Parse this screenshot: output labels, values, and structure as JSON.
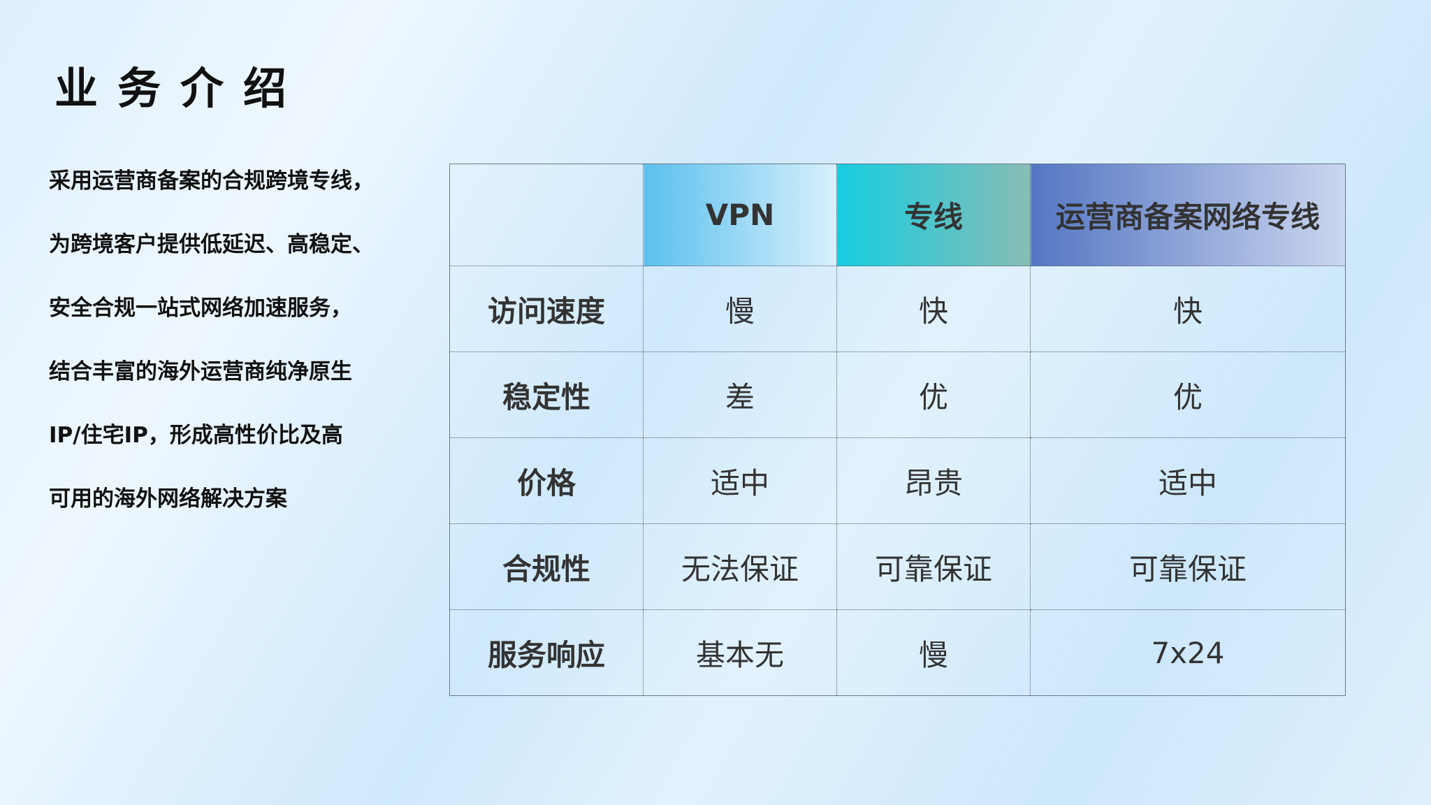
{
  "title": "业务介绍",
  "paragraph": [
    "采用运营商备案的合规跨境专线，",
    "为跨境客户提供低延迟、高稳定、",
    "安全合规一站式网络加速服务，",
    "结合丰富的海外运营商纯净原生",
    "IP/住宅IP，形成高性价比及高",
    "可用的海外网络解决方案"
  ],
  "table": {
    "headers": [
      "",
      "VPN",
      "专线",
      "运营商备案网络专线"
    ],
    "header_colors": [
      "#5bc0ee",
      "#16cde0",
      "#5476c3"
    ],
    "rows": [
      [
        "访问速度",
        "慢",
        "快",
        "快"
      ],
      [
        "稳定性",
        "差",
        "优",
        "优"
      ],
      [
        "价格",
        "适中",
        "昂贵",
        "适中"
      ],
      [
        "合规性",
        "无法保证",
        "可靠保证",
        "可靠保证"
      ],
      [
        "服务响应",
        "基本无",
        "慢",
        "7x24"
      ]
    ]
  }
}
